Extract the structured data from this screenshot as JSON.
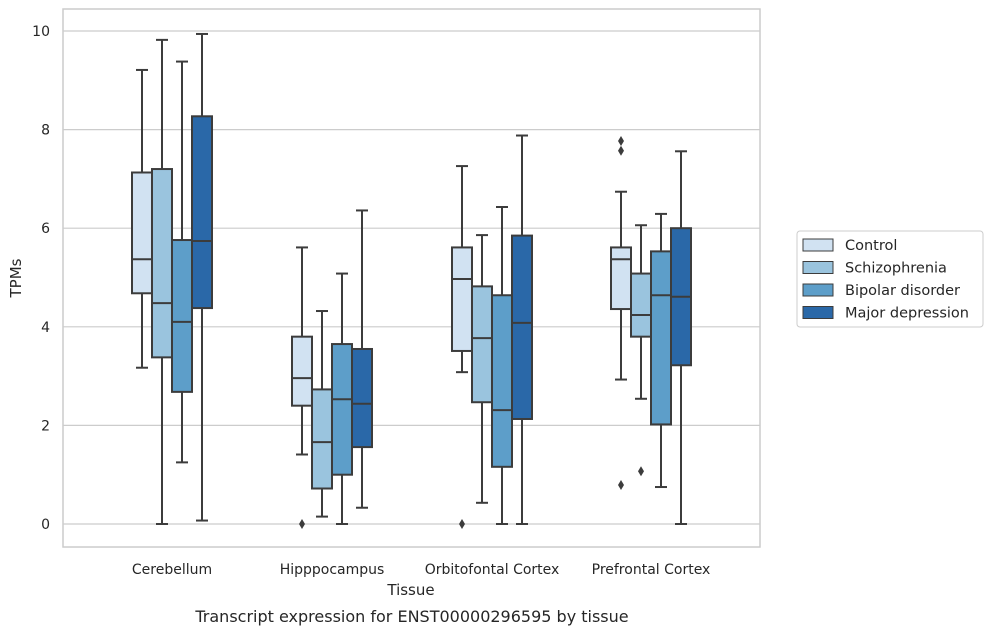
{
  "chart_data": {
    "type": "box",
    "title": "",
    "caption": "Transcript expression for ENST00000296595 by tissue",
    "xlabel": "Tissue",
    "ylabel": "TPMs",
    "ylim": [
      -0.45,
      10.45
    ],
    "yticks": [
      "0",
      "2",
      "4",
      "6",
      "8",
      "10"
    ],
    "ytick_values": [
      0,
      2,
      4,
      6,
      8,
      10
    ],
    "grid": "horizontal",
    "legend_position": "right",
    "categories": [
      "Cerebellum",
      "Hipppocampus",
      "Orbitofontal Cortex",
      "Prefrontal Cortex"
    ],
    "series": [
      {
        "name": "Control",
        "color": "#d1e2f2",
        "boxes": [
          {
            "whisker_low": 3.17,
            "q1": 4.68,
            "median": 5.37,
            "q3": 7.13,
            "whisker_high": 9.21,
            "outliers": []
          },
          {
            "whisker_low": 1.41,
            "q1": 2.4,
            "median": 2.96,
            "q3": 3.8,
            "whisker_high": 5.61,
            "outliers": [
              0.0
            ]
          },
          {
            "whisker_low": 3.08,
            "q1": 3.51,
            "median": 4.97,
            "q3": 5.61,
            "whisker_high": 7.26,
            "outliers": [
              0.0
            ]
          },
          {
            "whisker_low": 2.93,
            "q1": 4.36,
            "median": 5.37,
            "q3": 5.61,
            "whisker_high": 6.74,
            "outliers": [
              7.57,
              7.77,
              0.79
            ]
          }
        ]
      },
      {
        "name": "Schizophrenia",
        "color": "#9ac4de",
        "boxes": [
          {
            "whisker_low": 0.0,
            "q1": 3.38,
            "median": 4.48,
            "q3": 7.2,
            "whisker_high": 9.82,
            "outliers": []
          },
          {
            "whisker_low": 0.15,
            "q1": 0.72,
            "median": 1.66,
            "q3": 2.73,
            "whisker_high": 4.32,
            "outliers": []
          },
          {
            "whisker_low": 0.43,
            "q1": 2.47,
            "median": 3.77,
            "q3": 4.82,
            "whisker_high": 5.86,
            "outliers": []
          },
          {
            "whisker_low": 2.54,
            "q1": 3.8,
            "median": 4.24,
            "q3": 5.08,
            "whisker_high": 6.06,
            "outliers": [
              1.07
            ]
          }
        ]
      },
      {
        "name": "Bipolar disorder",
        "color": "#5d9ec9",
        "boxes": [
          {
            "whisker_low": 1.25,
            "q1": 2.68,
            "median": 4.1,
            "q3": 5.76,
            "whisker_high": 9.38,
            "outliers": []
          },
          {
            "whisker_low": 0.0,
            "q1": 1.0,
            "median": 2.53,
            "q3": 3.65,
            "whisker_high": 5.08,
            "outliers": []
          },
          {
            "whisker_low": 0.0,
            "q1": 1.16,
            "median": 2.31,
            "q3": 4.64,
            "whisker_high": 6.43,
            "outliers": []
          },
          {
            "whisker_low": 0.75,
            "q1": 2.02,
            "median": 4.64,
            "q3": 5.53,
            "whisker_high": 6.29,
            "outliers": []
          }
        ]
      },
      {
        "name": "Major depression",
        "color": "#2a68a8",
        "boxes": [
          {
            "whisker_low": 0.07,
            "q1": 4.38,
            "median": 5.74,
            "q3": 8.27,
            "whisker_high": 9.94,
            "outliers": []
          },
          {
            "whisker_low": 0.33,
            "q1": 1.56,
            "median": 2.44,
            "q3": 3.55,
            "whisker_high": 6.36,
            "outliers": []
          },
          {
            "whisker_low": 0.0,
            "q1": 2.13,
            "median": 4.08,
            "q3": 5.85,
            "whisker_high": 7.88,
            "outliers": []
          },
          {
            "whisker_low": 0.0,
            "q1": 3.22,
            "median": 4.61,
            "q3": 6.0,
            "whisker_high": 7.56,
            "outliers": []
          }
        ]
      }
    ]
  }
}
